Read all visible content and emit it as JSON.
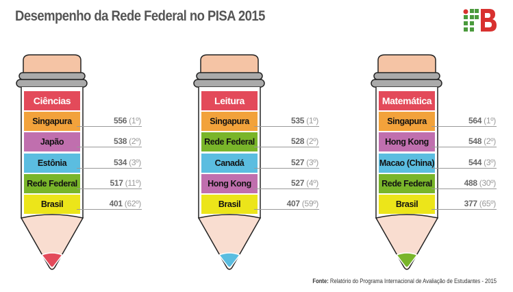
{
  "title": "Desempenho da Rede Federal no PISA 2015",
  "logo_text": "IFB",
  "source_label": "Fonte:",
  "source_text": "Relatório do Programa Internacional de Avaliação de Estudantes - 2015",
  "colors": {
    "cap": "#f5c4a5",
    "cone": "#f9ddd0",
    "ring": "#9a9a9a",
    "title_band": "#e34a5a",
    "logo_green": "#4a9a3c",
    "logo_red": "#d8312f"
  },
  "pencils": [
    {
      "subject": "Ciências",
      "tip_color": "#e34a5a",
      "rows": [
        {
          "country": "Singapura",
          "score": "556",
          "rank": "(1º)",
          "color": "#f2a23b"
        },
        {
          "country": "Japão",
          "score": "538",
          "rank": "(2º)",
          "color": "#c06fae"
        },
        {
          "country": "Estônia",
          "score": "534",
          "rank": "(3º)",
          "color": "#5bbde0"
        },
        {
          "country": "Rede Federal",
          "score": "517",
          "rank": "(11º)",
          "color": "#79b52a"
        },
        {
          "country": "Brasil",
          "score": "401",
          "rank": "(62º)",
          "color": "#ece51a"
        }
      ]
    },
    {
      "subject": "Leitura",
      "tip_color": "#5bbde0",
      "rows": [
        {
          "country": "Singapura",
          "score": "535",
          "rank": "(1º)",
          "color": "#f2a23b"
        },
        {
          "country": "Rede Federal",
          "score": "528",
          "rank": "(2º)",
          "color": "#79b52a"
        },
        {
          "country": "Canadá",
          "score": "527",
          "rank": "(3º)",
          "color": "#5bbde0"
        },
        {
          "country": "Hong Kong",
          "score": "527",
          "rank": "(4º)",
          "color": "#c06fae"
        },
        {
          "country": "Brasil",
          "score": "407",
          "rank": "(59º)",
          "color": "#ece51a"
        }
      ]
    },
    {
      "subject": "Matemática",
      "tip_color": "#79b52a",
      "rows": [
        {
          "country": "Singapura",
          "score": "564",
          "rank": "(1º)",
          "color": "#f2a23b"
        },
        {
          "country": "Hong Kong",
          "score": "548",
          "rank": "(2º)",
          "color": "#c06fae"
        },
        {
          "country": "Macao (China)",
          "score": "544",
          "rank": "(3º)",
          "color": "#5bbde0"
        },
        {
          "country": "Rede Federal",
          "score": "488",
          "rank": "(30º)",
          "color": "#79b52a"
        },
        {
          "country": "Brasil",
          "score": "377",
          "rank": "(65º)",
          "color": "#ece51a"
        }
      ]
    }
  ]
}
